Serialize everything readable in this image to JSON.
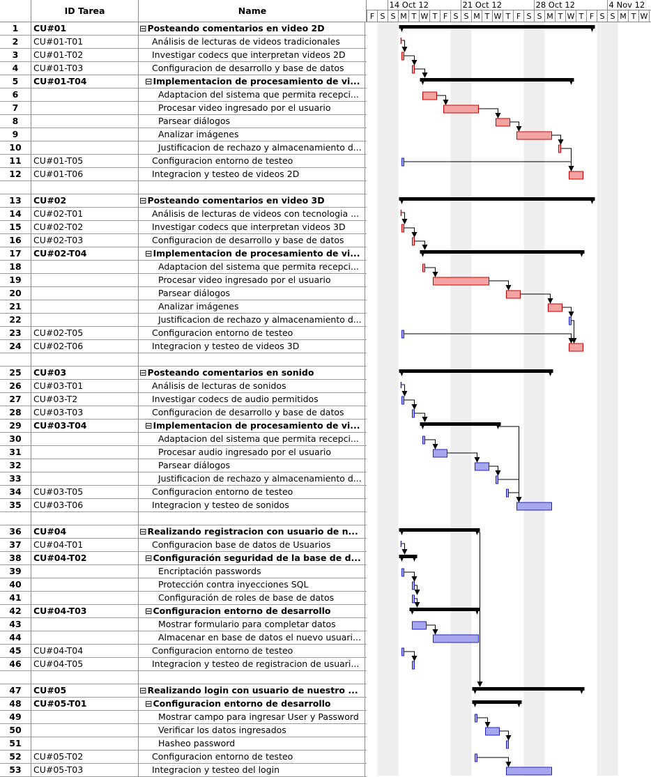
{
  "headers": {
    "num": "",
    "id": "ID Tarea",
    "name": "Name"
  },
  "timeline": {
    "weeks": [
      "14 Oct 12",
      "21 Oct 12",
      "28 Oct 12",
      "4 Nov 12"
    ],
    "day_letters": [
      "F",
      "S",
      "S",
      "M",
      "T",
      "W",
      "T",
      "F",
      "S",
      "S",
      "M",
      "T",
      "W",
      "T",
      "F",
      "S",
      "S",
      "M",
      "T",
      "W",
      "T",
      "F",
      "S",
      "S",
      "M",
      "T",
      "W"
    ]
  },
  "colors": {
    "red": "#f4a3a3",
    "red_border": "#cc0000",
    "blue": "#a7a7f0",
    "blue_border": "#2020cc",
    "summary": "#000000",
    "weekend": "#eeeeee"
  },
  "rows": [
    {
      "num": "1",
      "id": "CU#01",
      "name": "Posteando comentarios en video 2D",
      "indent": 0,
      "sum": true
    },
    {
      "num": "2",
      "id": "CU#01-T01",
      "name": "Análisis de lecturas de videos tradicionales",
      "indent": 1
    },
    {
      "num": "3",
      "id": "CU#01-T02",
      "name": "Investigar codecs que interpretan videos 2D",
      "indent": 1
    },
    {
      "num": "4",
      "id": "CU#01-T03",
      "name": "Configuracion de desarrollo y base de datos",
      "indent": 1
    },
    {
      "num": "5",
      "id": "CU#01-T04",
      "name": "Implementacion de procesamiento de vi...",
      "indent": 1,
      "sum": true
    },
    {
      "num": "6",
      "id": "",
      "name": "Adaptacion del sistema que permita recepci...",
      "indent": 2
    },
    {
      "num": "7",
      "id": "",
      "name": "Procesar video ingresado por el usuario",
      "indent": 2
    },
    {
      "num": "8",
      "id": "",
      "name": "Parsear diálogos",
      "indent": 2
    },
    {
      "num": "9",
      "id": "",
      "name": "Analizar imágenes",
      "indent": 2
    },
    {
      "num": "10",
      "id": "",
      "name": "Justificacion de rechazo y almacenamiento d...",
      "indent": 2
    },
    {
      "num": "11",
      "id": "CU#01-T05",
      "name": "Configuracion entorno de testeo",
      "indent": 1
    },
    {
      "num": "12",
      "id": "CU#01-T06",
      "name": "Integracion y testeo de videos 2D",
      "indent": 1
    },
    {
      "blank": true
    },
    {
      "num": "13",
      "id": "CU#02",
      "name": "Posteando comentarios en video 3D",
      "indent": 0,
      "sum": true
    },
    {
      "num": "14",
      "id": "CU#02-T01",
      "name": "Análisis de lecturas de videos con tecnologia ...",
      "indent": 1
    },
    {
      "num": "15",
      "id": "CU#02-T02",
      "name": "Investigar codecs que interpretan videos 3D",
      "indent": 1
    },
    {
      "num": "16",
      "id": "CU#02-T03",
      "name": "Configuracion de desarrollo y base de datos",
      "indent": 1
    },
    {
      "num": "17",
      "id": "CU#02-T04",
      "name": "Implementacion de procesamiento de vi...",
      "indent": 1,
      "sum": true
    },
    {
      "num": "18",
      "id": "",
      "name": "Adaptacion del sistema que permita recepci...",
      "indent": 2
    },
    {
      "num": "19",
      "id": "",
      "name": "Procesar video ingresado por el usuario",
      "indent": 2
    },
    {
      "num": "20",
      "id": "",
      "name": "Parsear diálogos",
      "indent": 2
    },
    {
      "num": "21",
      "id": "",
      "name": "Analizar imágenes",
      "indent": 2
    },
    {
      "num": "22",
      "id": "",
      "name": "Justificacion de rechazo y almacenamiento d...",
      "indent": 2
    },
    {
      "num": "23",
      "id": "CU#02-T05",
      "name": "Configuracion entorno de testeo",
      "indent": 1
    },
    {
      "num": "24",
      "id": "CU#02-T06",
      "name": "Integracion y testeo de videos 3D",
      "indent": 1
    },
    {
      "blank": true
    },
    {
      "num": "25",
      "id": "CU#03",
      "name": "Posteando comentarios en sonido",
      "indent": 0,
      "sum": true
    },
    {
      "num": "26",
      "id": "CU#03-T01",
      "name": "Análisis de lecturas de sonidos",
      "indent": 1
    },
    {
      "num": "27",
      "id": "CU#03-T2",
      "name": "Investigar codecs de audio permitidos",
      "indent": 1
    },
    {
      "num": "28",
      "id": "CU#03-T03",
      "name": "Configuracion de desarrollo y base de datos",
      "indent": 1
    },
    {
      "num": "29",
      "id": "CU#03-T04",
      "name": "Implementacion de procesamiento de vi...",
      "indent": 1,
      "sum": true
    },
    {
      "num": "30",
      "id": "",
      "name": "Adaptacion del sistema que permita recepci...",
      "indent": 2
    },
    {
      "num": "31",
      "id": "",
      "name": "Procesar audio ingresado por el usuario",
      "indent": 2
    },
    {
      "num": "32",
      "id": "",
      "name": "Parsear diálogos",
      "indent": 2
    },
    {
      "num": "33",
      "id": "",
      "name": "Justificacion de rechazo y almacenamiento d...",
      "indent": 2
    },
    {
      "num": "34",
      "id": "CU#03-T05",
      "name": "Configuracion entorno de testeo",
      "indent": 1
    },
    {
      "num": "35",
      "id": "CU#03-T06",
      "name": "Integracion y testeo de sonidos",
      "indent": 1
    },
    {
      "blank": true
    },
    {
      "num": "36",
      "id": "CU#04",
      "name": "Realizando registracion con usuario de n...",
      "indent": 0,
      "sum": true
    },
    {
      "num": "37",
      "id": "CU#04-T01",
      "name": "Configuracion base de datos de Usuarios",
      "indent": 1
    },
    {
      "num": "38",
      "id": "CU#04-T02",
      "name": "Configuración seguridad de la base de d...",
      "indent": 1,
      "sum": true
    },
    {
      "num": "39",
      "id": "",
      "name": "Encriptación passwords",
      "indent": 2
    },
    {
      "num": "40",
      "id": "",
      "name": "Protección contra inyecciones SQL",
      "indent": 2
    },
    {
      "num": "41",
      "id": "",
      "name": "Configuración de roles de base de datos",
      "indent": 2
    },
    {
      "num": "42",
      "id": "CU#04-T03",
      "name": "Configuracion entorno de desarrollo",
      "indent": 1,
      "sum": true
    },
    {
      "num": "43",
      "id": "",
      "name": "Mostrar formulario para completar datos",
      "indent": 2
    },
    {
      "num": "44",
      "id": "",
      "name": "Almacenar en base de datos el nuevo usuari...",
      "indent": 2
    },
    {
      "num": "45",
      "id": "CU#04-T04",
      "name": "Configuracion entorno de testeo",
      "indent": 1
    },
    {
      "num": "46",
      "id": "CU#04-T05",
      "name": "Integracion y testeo de registracion de usuari...",
      "indent": 1
    },
    {
      "blank": true
    },
    {
      "num": "47",
      "id": "CU#05",
      "name": "Realizando login con usuario de nuestro ...",
      "indent": 0,
      "sum": true
    },
    {
      "num": "48",
      "id": "CU#05-T01",
      "name": "Configuracion entorno de desarrollo",
      "indent": 1,
      "sum": true
    },
    {
      "num": "49",
      "id": "",
      "name": "Mostrar campo para ingresar User y Password",
      "indent": 2
    },
    {
      "num": "50",
      "id": "",
      "name": "Verificar los datos ingresados",
      "indent": 2
    },
    {
      "num": "51",
      "id": "",
      "name": "Hasheo password",
      "indent": 2
    },
    {
      "num": "52",
      "id": "CU#05-T02",
      "name": "Configuracion entorno de testeo",
      "indent": 1
    },
    {
      "num": "53",
      "id": "CU#05-T03",
      "name": "Integracion y testeo del login",
      "indent": 1
    }
  ],
  "chart_data": {
    "type": "gantt",
    "time_unit": "day",
    "axis": {
      "first_day": "2012-10-12",
      "day_count": 27
    },
    "tasks": [
      {
        "row": 1,
        "kind": "summary",
        "start": "2012-10-15",
        "end": "2012-11-02"
      },
      {
        "row": 2,
        "kind": "milestone",
        "color": "red",
        "start": "2012-10-15",
        "end": "2012-10-15"
      },
      {
        "row": 3,
        "kind": "task",
        "color": "red",
        "start": "2012-10-15",
        "end": "2012-10-15"
      },
      {
        "row": 4,
        "kind": "task",
        "color": "red",
        "start": "2012-10-16",
        "end": "2012-10-16"
      },
      {
        "row": 5,
        "kind": "summary",
        "start": "2012-10-17",
        "end": "2012-10-31"
      },
      {
        "row": 6,
        "kind": "task",
        "color": "red",
        "start": "2012-10-17",
        "end": "2012-10-18"
      },
      {
        "row": 7,
        "kind": "task",
        "color": "red",
        "start": "2012-10-19",
        "end": "2012-10-22"
      },
      {
        "row": 8,
        "kind": "task",
        "color": "red",
        "start": "2012-10-24",
        "end": "2012-10-25"
      },
      {
        "row": 9,
        "kind": "task",
        "color": "red",
        "start": "2012-10-26",
        "end": "2012-10-29"
      },
      {
        "row": 10,
        "kind": "task",
        "color": "red",
        "start": "2012-10-30",
        "end": "2012-10-30"
      },
      {
        "row": 11,
        "kind": "task",
        "color": "blue",
        "start": "2012-10-15",
        "end": "2012-10-15"
      },
      {
        "row": 12,
        "kind": "task",
        "color": "red",
        "start": "2012-10-31",
        "end": "2012-11-01"
      },
      {
        "row": 13,
        "kind": "summary",
        "start": "2012-10-15",
        "end": "2012-11-02"
      },
      {
        "row": 14,
        "kind": "milestone",
        "color": "red",
        "start": "2012-10-15",
        "end": "2012-10-15"
      },
      {
        "row": 15,
        "kind": "task",
        "color": "red",
        "start": "2012-10-15",
        "end": "2012-10-15"
      },
      {
        "row": 16,
        "kind": "task",
        "color": "red",
        "start": "2012-10-16",
        "end": "2012-10-16"
      },
      {
        "row": 17,
        "kind": "summary",
        "start": "2012-10-17",
        "end": "2012-11-01"
      },
      {
        "row": 18,
        "kind": "task",
        "color": "red",
        "start": "2012-10-17",
        "end": "2012-10-17"
      },
      {
        "row": 19,
        "kind": "task",
        "color": "red",
        "start": "2012-10-18",
        "end": "2012-10-23"
      },
      {
        "row": 20,
        "kind": "task",
        "color": "red",
        "start": "2012-10-25",
        "end": "2012-10-26"
      },
      {
        "row": 21,
        "kind": "task",
        "color": "red",
        "start": "2012-10-29",
        "end": "2012-10-30"
      },
      {
        "row": 22,
        "kind": "task",
        "color": "blue",
        "start": "2012-10-31",
        "end": "2012-10-31"
      },
      {
        "row": 23,
        "kind": "task",
        "color": "blue",
        "start": "2012-10-15",
        "end": "2012-10-15"
      },
      {
        "row": 24,
        "kind": "task",
        "color": "red",
        "start": "2012-10-31",
        "end": "2012-11-01"
      },
      {
        "row": 25,
        "kind": "summary",
        "start": "2012-10-15",
        "end": "2012-10-29"
      },
      {
        "row": 26,
        "kind": "milestone",
        "color": "blue",
        "start": "2012-10-15",
        "end": "2012-10-15"
      },
      {
        "row": 27,
        "kind": "task",
        "color": "blue",
        "start": "2012-10-15",
        "end": "2012-10-15"
      },
      {
        "row": 28,
        "kind": "task",
        "color": "blue",
        "start": "2012-10-16",
        "end": "2012-10-16"
      },
      {
        "row": 29,
        "kind": "summary",
        "start": "2012-10-17",
        "end": "2012-10-24"
      },
      {
        "row": 30,
        "kind": "task",
        "color": "blue",
        "start": "2012-10-17",
        "end": "2012-10-17"
      },
      {
        "row": 31,
        "kind": "task",
        "color": "blue",
        "start": "2012-10-18",
        "end": "2012-10-19"
      },
      {
        "row": 32,
        "kind": "task",
        "color": "blue",
        "start": "2012-10-22",
        "end": "2012-10-23"
      },
      {
        "row": 33,
        "kind": "task",
        "color": "blue",
        "start": "2012-10-24",
        "end": "2012-10-24"
      },
      {
        "row": 34,
        "kind": "task",
        "color": "blue",
        "start": "2012-10-25",
        "end": "2012-10-25"
      },
      {
        "row": 35,
        "kind": "task",
        "color": "blue",
        "start": "2012-10-26",
        "end": "2012-10-29"
      },
      {
        "row": 36,
        "kind": "summary",
        "start": "2012-10-15",
        "end": "2012-10-22"
      },
      {
        "row": 37,
        "kind": "milestone",
        "color": "blue",
        "start": "2012-10-15",
        "end": "2012-10-15"
      },
      {
        "row": 38,
        "kind": "summary",
        "start": "2012-10-15",
        "end": "2012-10-16"
      },
      {
        "row": 39,
        "kind": "task",
        "color": "blue",
        "start": "2012-10-15",
        "end": "2012-10-15"
      },
      {
        "row": 40,
        "kind": "task",
        "color": "blue",
        "start": "2012-10-16",
        "end": "2012-10-16"
      },
      {
        "row": 41,
        "kind": "task",
        "color": "blue",
        "start": "2012-10-16",
        "end": "2012-10-16"
      },
      {
        "row": 42,
        "kind": "summary",
        "start": "2012-10-16",
        "end": "2012-10-22"
      },
      {
        "row": 43,
        "kind": "task",
        "color": "blue",
        "start": "2012-10-16",
        "end": "2012-10-17"
      },
      {
        "row": 44,
        "kind": "task",
        "color": "blue",
        "start": "2012-10-18",
        "end": "2012-10-22"
      },
      {
        "row": 45,
        "kind": "task",
        "color": "blue",
        "start": "2012-10-15",
        "end": "2012-10-15"
      },
      {
        "row": 46,
        "kind": "task",
        "color": "blue",
        "start": "2012-10-16",
        "end": "2012-10-16"
      },
      {
        "row": 47,
        "kind": "summary",
        "start": "2012-10-22",
        "end": "2012-11-01"
      },
      {
        "row": 48,
        "kind": "summary",
        "start": "2012-10-22",
        "end": "2012-10-26"
      },
      {
        "row": 49,
        "kind": "task",
        "color": "blue",
        "start": "2012-10-22",
        "end": "2012-10-22"
      },
      {
        "row": 50,
        "kind": "task",
        "color": "blue",
        "start": "2012-10-23",
        "end": "2012-10-24"
      },
      {
        "row": 51,
        "kind": "task",
        "color": "blue",
        "start": "2012-10-25",
        "end": "2012-10-25"
      },
      {
        "row": 52,
        "kind": "task",
        "color": "blue",
        "start": "2012-10-22",
        "end": "2012-10-22"
      },
      {
        "row": 53,
        "kind": "task",
        "color": "blue",
        "start": "2012-10-25",
        "end": "2012-10-29"
      }
    ],
    "links": [
      [
        2,
        3
      ],
      [
        3,
        4
      ],
      [
        4,
        5
      ],
      [
        6,
        7
      ],
      [
        7,
        8
      ],
      [
        8,
        9
      ],
      [
        9,
        10
      ],
      [
        10,
        12
      ],
      [
        11,
        12
      ],
      [
        14,
        15
      ],
      [
        15,
        16
      ],
      [
        16,
        17
      ],
      [
        18,
        19
      ],
      [
        19,
        20
      ],
      [
        20,
        21
      ],
      [
        21,
        22
      ],
      [
        22,
        24
      ],
      [
        23,
        24
      ],
      [
        26,
        27
      ],
      [
        27,
        28
      ],
      [
        28,
        29
      ],
      [
        30,
        31
      ],
      [
        31,
        32
      ],
      [
        32,
        33
      ],
      [
        33,
        35
      ],
      [
        34,
        35
      ],
      [
        29,
        35
      ],
      [
        37,
        38
      ],
      [
        39,
        40
      ],
      [
        40,
        41
      ],
      [
        41,
        42
      ],
      [
        43,
        44
      ],
      [
        45,
        46
      ],
      [
        36,
        47
      ],
      [
        49,
        50
      ],
      [
        50,
        51
      ],
      [
        52,
        53
      ]
    ]
  }
}
